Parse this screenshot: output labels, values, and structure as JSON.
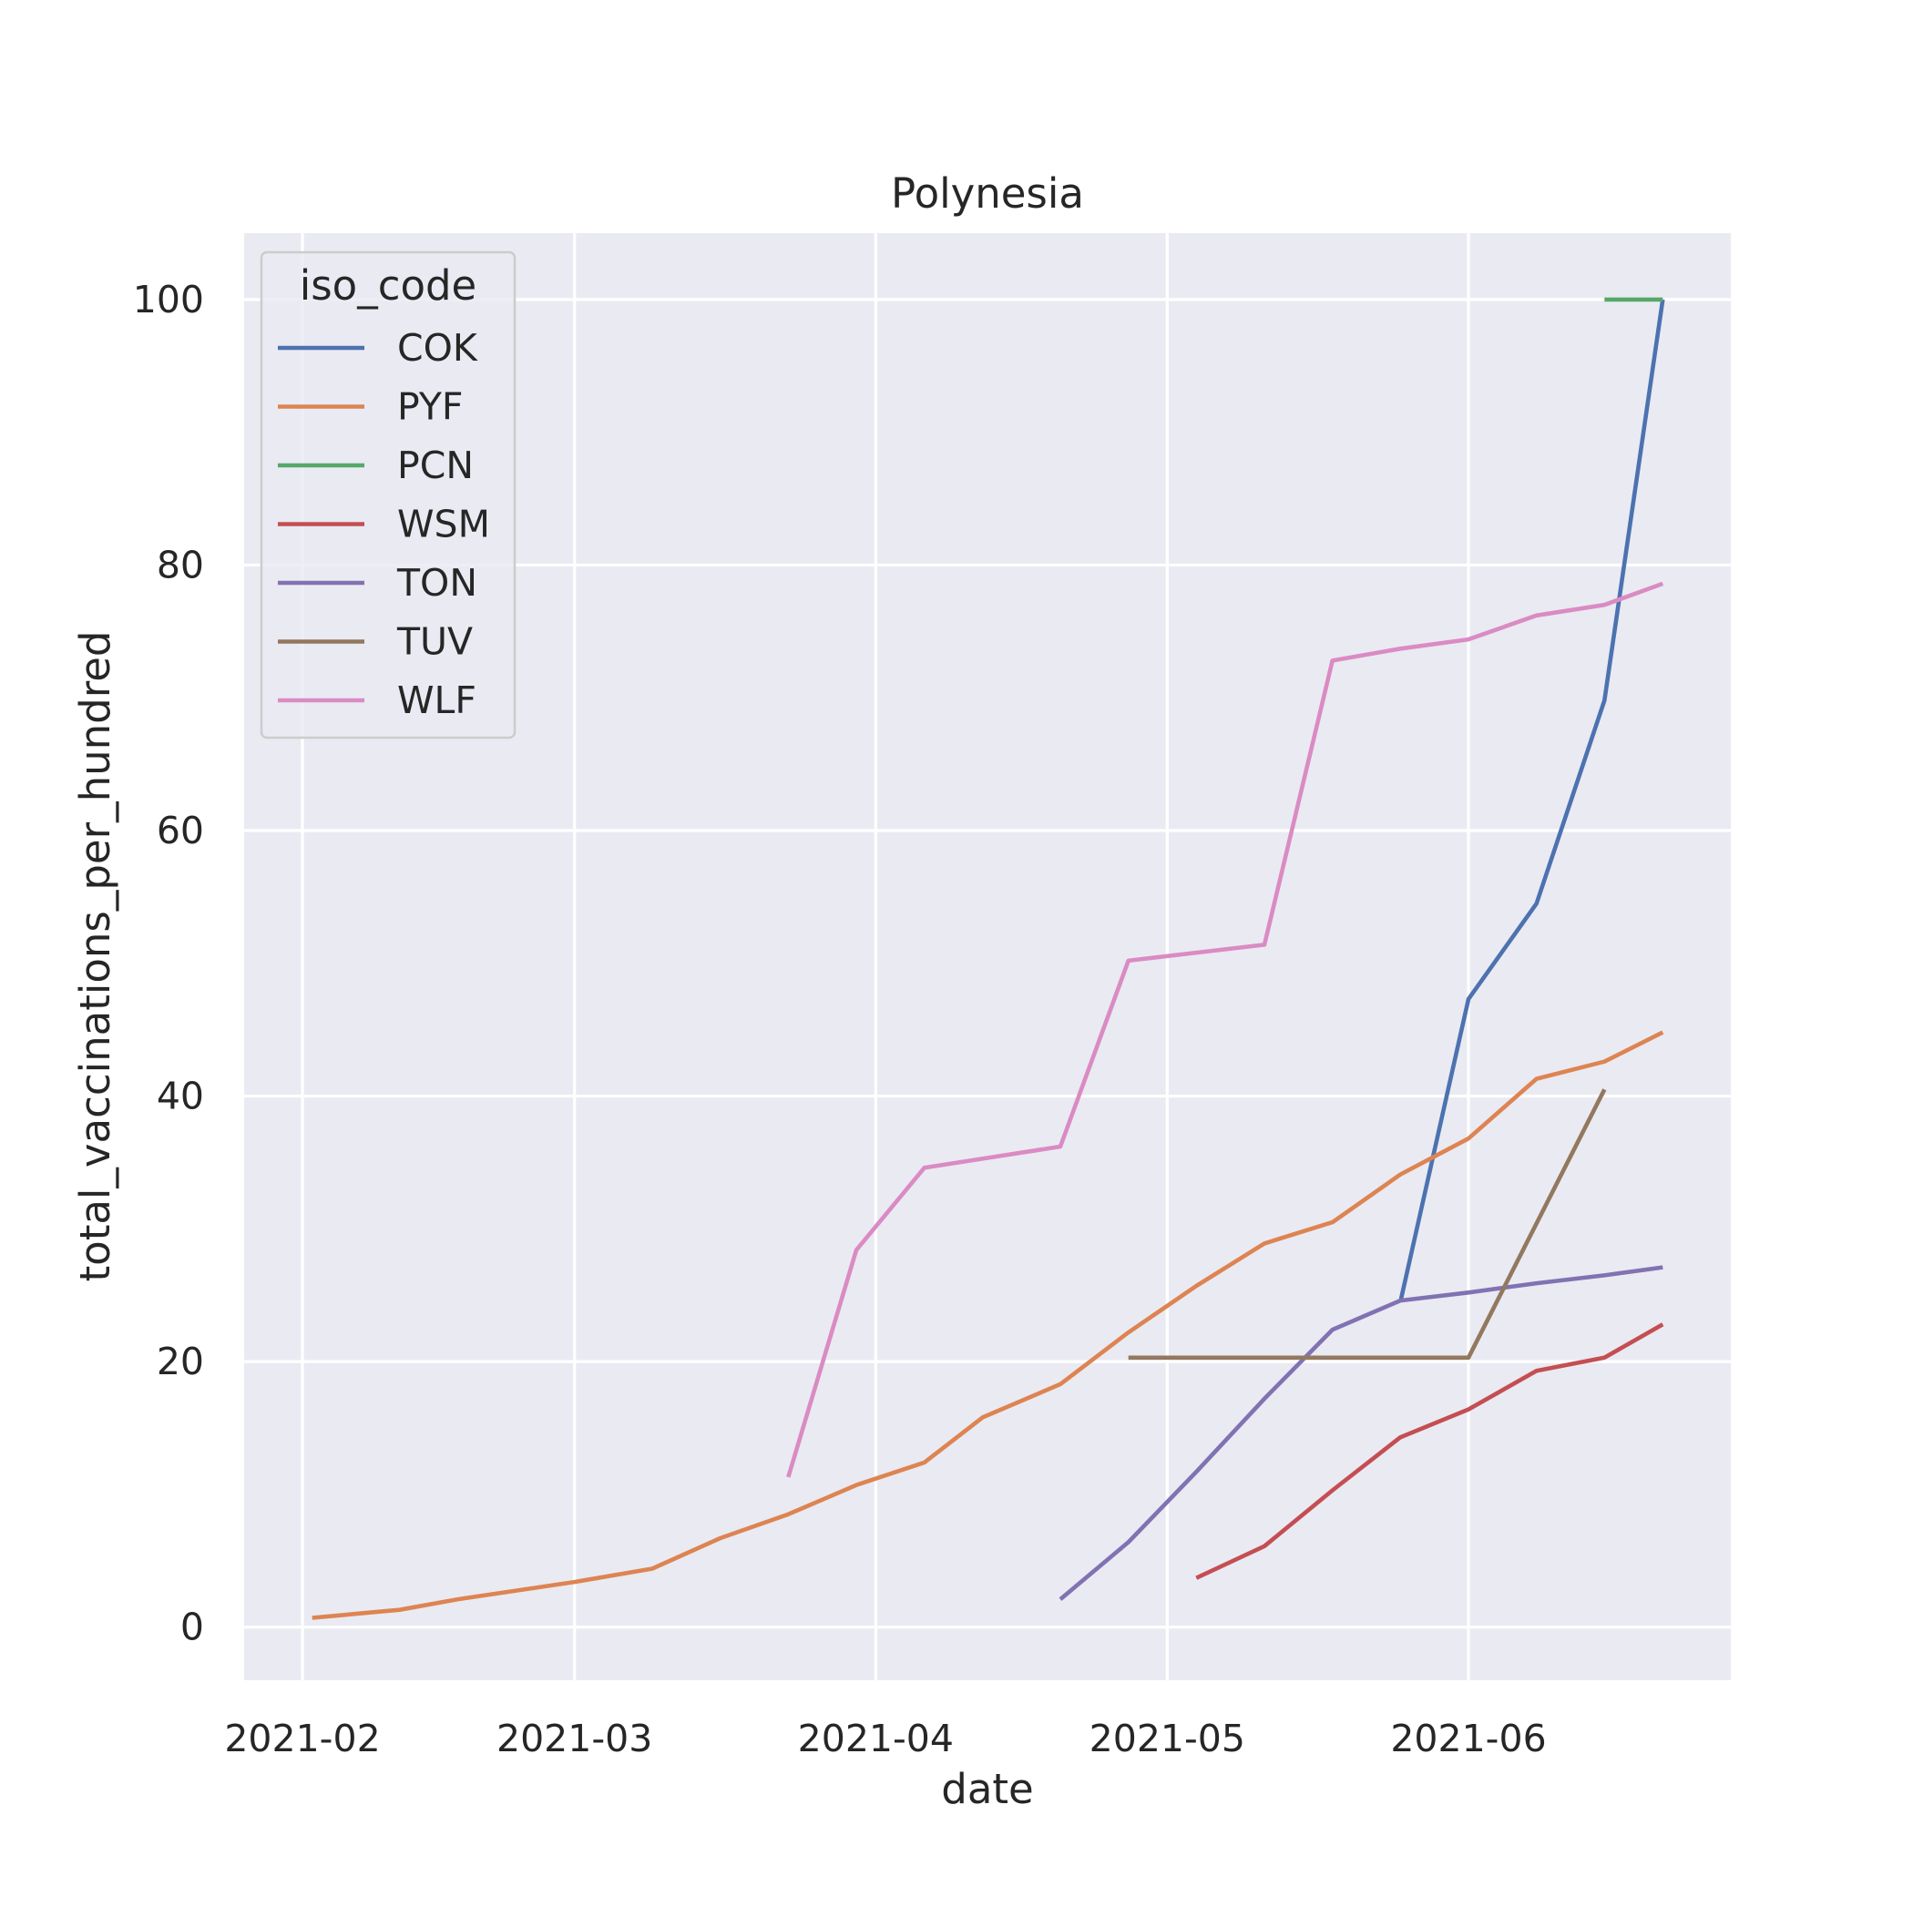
{
  "chart_data": {
    "type": "line",
    "title": "Polynesia",
    "xlabel": "date",
    "ylabel": "total_vaccinations_per_hundred",
    "x_axis_type": "date",
    "xlim": [
      "2021-01-26",
      "2021-06-28"
    ],
    "ylim": [
      -4,
      105
    ],
    "x_ticks": [
      "2021-02-01",
      "2021-03-01",
      "2021-04-01",
      "2021-05-01",
      "2021-06-01"
    ],
    "x_tick_labels": [
      "2021-02",
      "2021-03",
      "2021-04",
      "2021-05",
      "2021-06"
    ],
    "y_ticks": [
      0,
      20,
      40,
      60,
      80,
      100
    ],
    "y_tick_labels": [
      "0",
      "20",
      "40",
      "60",
      "80",
      "100"
    ],
    "grid": true,
    "legend": {
      "title": "iso_code",
      "position": "top-left"
    },
    "series": [
      {
        "name": "COK",
        "color": "#4c72b0",
        "points": [
          [
            "2021-05-25",
            24.5
          ],
          [
            "2021-06-01",
            47.3
          ],
          [
            "2021-06-08",
            54.5
          ],
          [
            "2021-06-15",
            69.8
          ],
          [
            "2021-06-21",
            100.0
          ]
        ]
      },
      {
        "name": "PYF",
        "color": "#dd8452",
        "points": [
          [
            "2021-02-02",
            0.7
          ],
          [
            "2021-02-11",
            1.3
          ],
          [
            "2021-02-17",
            2.1
          ],
          [
            "2021-03-01",
            3.4
          ],
          [
            "2021-03-09",
            4.4
          ],
          [
            "2021-03-16",
            6.7
          ],
          [
            "2021-03-23",
            8.5
          ],
          [
            "2021-03-30",
            10.7
          ],
          [
            "2021-04-06",
            12.4
          ],
          [
            "2021-04-12",
            15.8
          ],
          [
            "2021-04-20",
            18.3
          ],
          [
            "2021-04-27",
            22.2
          ],
          [
            "2021-05-04",
            25.7
          ],
          [
            "2021-05-11",
            28.9
          ],
          [
            "2021-05-18",
            30.5
          ],
          [
            "2021-05-25",
            34.1
          ],
          [
            "2021-06-01",
            36.8
          ],
          [
            "2021-06-08",
            41.3
          ],
          [
            "2021-06-15",
            42.6
          ],
          [
            "2021-06-21",
            44.8
          ]
        ]
      },
      {
        "name": "PCN",
        "color": "#55a868",
        "points": [
          [
            "2021-06-15",
            100.0
          ],
          [
            "2021-06-21",
            100.0
          ]
        ]
      },
      {
        "name": "WSM",
        "color": "#c44e52",
        "points": [
          [
            "2021-05-04",
            3.7
          ],
          [
            "2021-05-11",
            6.1
          ],
          [
            "2021-05-18",
            10.3
          ],
          [
            "2021-05-25",
            14.3
          ],
          [
            "2021-06-01",
            16.4
          ],
          [
            "2021-06-08",
            19.3
          ],
          [
            "2021-06-15",
            20.3
          ],
          [
            "2021-06-21",
            22.8
          ]
        ]
      },
      {
        "name": "TON",
        "color": "#8172b3",
        "points": [
          [
            "2021-04-20",
            2.1
          ],
          [
            "2021-04-27",
            6.4
          ],
          [
            "2021-05-04",
            11.7
          ],
          [
            "2021-05-11",
            17.2
          ],
          [
            "2021-05-18",
            22.4
          ],
          [
            "2021-05-25",
            24.6
          ],
          [
            "2021-06-01",
            25.2
          ],
          [
            "2021-06-08",
            25.9
          ],
          [
            "2021-06-15",
            26.5
          ],
          [
            "2021-06-21",
            27.1
          ]
        ]
      },
      {
        "name": "TUV",
        "color": "#937860",
        "points": [
          [
            "2021-04-27",
            20.3
          ],
          [
            "2021-06-01",
            20.3
          ],
          [
            "2021-06-15",
            40.5
          ]
        ]
      },
      {
        "name": "WLF",
        "color": "#da8bc3",
        "points": [
          [
            "2021-03-23",
            11.3
          ],
          [
            "2021-03-30",
            28.4
          ],
          [
            "2021-04-06",
            34.6
          ],
          [
            "2021-04-20",
            36.2
          ],
          [
            "2021-04-27",
            50.2
          ],
          [
            "2021-05-11",
            51.4
          ],
          [
            "2021-05-18",
            72.8
          ],
          [
            "2021-05-25",
            73.7
          ],
          [
            "2021-06-01",
            74.4
          ],
          [
            "2021-06-08",
            76.2
          ],
          [
            "2021-06-15",
            77.0
          ],
          [
            "2021-06-21",
            78.6
          ]
        ]
      }
    ]
  }
}
